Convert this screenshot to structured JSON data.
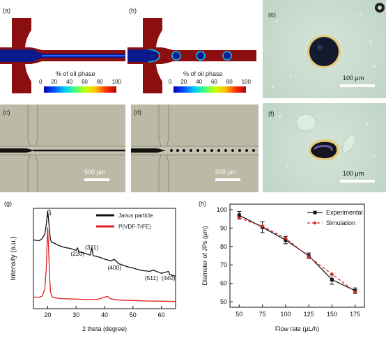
{
  "panels": {
    "a": {
      "label": "(a)",
      "colorbar_title": "% of oil phase",
      "ticks": [
        "0",
        "20",
        "40",
        "60",
        "80",
        "100"
      ]
    },
    "b": {
      "label": "(b)",
      "colorbar_title": "% of oil phase",
      "ticks": [
        "0",
        "20",
        "40",
        "60",
        "80",
        "100"
      ]
    },
    "c": {
      "label": "(c)",
      "scale": "500 μm"
    },
    "d": {
      "label": "(d)",
      "scale": "500 μm"
    },
    "e": {
      "label": "(e)",
      "scale": "100 μm"
    },
    "f": {
      "label": "(f)",
      "scale": "100 μm"
    },
    "g": {
      "label": "(g)"
    },
    "h": {
      "label": "(h)"
    }
  },
  "colors": {
    "water": "#8b0f0f",
    "oil": "#0a1a8c",
    "micro_bg": "#b9b7a4",
    "optical_bg": "#c9dccf"
  },
  "chart_data": [
    {
      "type": "line",
      "panel": "g",
      "xlabel": "2 theta (degree)",
      "ylabel": "Intensity (a.u.)",
      "xlim": [
        15,
        65
      ],
      "xticks": [
        "20",
        "30",
        "40",
        "50",
        "60"
      ],
      "legend_position": "top-right",
      "peak_labels": [
        {
          "text": "β",
          "x": 20.5
        },
        {
          "text": "(220)",
          "x": 30.5
        },
        {
          "text": "(311)",
          "x": 35.5
        },
        {
          "text": "(400)",
          "x": 43.5
        },
        {
          "text": "(511)",
          "x": 56.5
        },
        {
          "text": "(440)",
          "x": 62.5
        }
      ],
      "series": [
        {
          "name": "Janus particle",
          "color": "#111111",
          "x": [
            15,
            17,
            18,
            19,
            19.5,
            20,
            20.3,
            20.7,
            21,
            21.5,
            22,
            24,
            26,
            28,
            30,
            30.5,
            31,
            33,
            35,
            35.5,
            36,
            38,
            40,
            42,
            43.5,
            45,
            48,
            50,
            53,
            56,
            57,
            60,
            62.5,
            63,
            65
          ],
          "y": [
            7.2,
            7.1,
            7.3,
            7.8,
            8.8,
            10.2,
            9.4,
            8.0,
            7.2,
            6.9,
            6.9,
            6.6,
            6.4,
            6.3,
            6.1,
            6.35,
            5.95,
            5.8,
            5.6,
            6.4,
            5.55,
            5.4,
            5.2,
            5.0,
            5.15,
            4.7,
            4.4,
            4.25,
            4.0,
            3.9,
            4.05,
            3.7,
            3.9,
            3.55,
            3.4
          ]
        },
        {
          "name": "P(VDF-TrFE)",
          "color": "#e02020",
          "x": [
            15,
            17,
            18,
            19,
            19.5,
            20,
            20.3,
            20.7,
            21,
            21.5,
            22,
            25,
            30,
            35,
            38,
            40,
            41,
            42,
            45,
            50,
            55,
            60,
            65
          ],
          "y": [
            1.2,
            1.2,
            1.3,
            2.0,
            4.2,
            8.5,
            6.5,
            3.2,
            1.8,
            1.3,
            1.15,
            1.05,
            1.0,
            0.95,
            1.0,
            1.2,
            1.3,
            1.05,
            0.9,
            0.85,
            0.8,
            0.78,
            0.75
          ]
        }
      ]
    },
    {
      "type": "line",
      "panel": "h",
      "xlabel": "Flow rate (μL/h)",
      "ylabel": "Diameter of JPs (μm)",
      "xlim": [
        40,
        185
      ],
      "ylim": [
        47,
        103
      ],
      "xticks": [
        50,
        75,
        100,
        125,
        150,
        175
      ],
      "yticks": [
        50,
        60,
        70,
        80,
        90,
        100
      ],
      "legend_position": "top-right",
      "series": [
        {
          "name": "Experimental",
          "color": "#111111",
          "style": "solid",
          "x": [
            50,
            75,
            100,
            125,
            150,
            175
          ],
          "y": [
            97,
            90.5,
            83.5,
            75,
            62,
            56
          ],
          "err": [
            2,
            3,
            2,
            1.5,
            2.5,
            1.5
          ]
        },
        {
          "name": "Simulation",
          "color": "#e02020",
          "style": "dashed",
          "x": [
            50,
            75,
            100,
            125,
            150,
            175
          ],
          "y": [
            95.5,
            91,
            84.5,
            74.5,
            65,
            55.5
          ]
        }
      ]
    }
  ]
}
